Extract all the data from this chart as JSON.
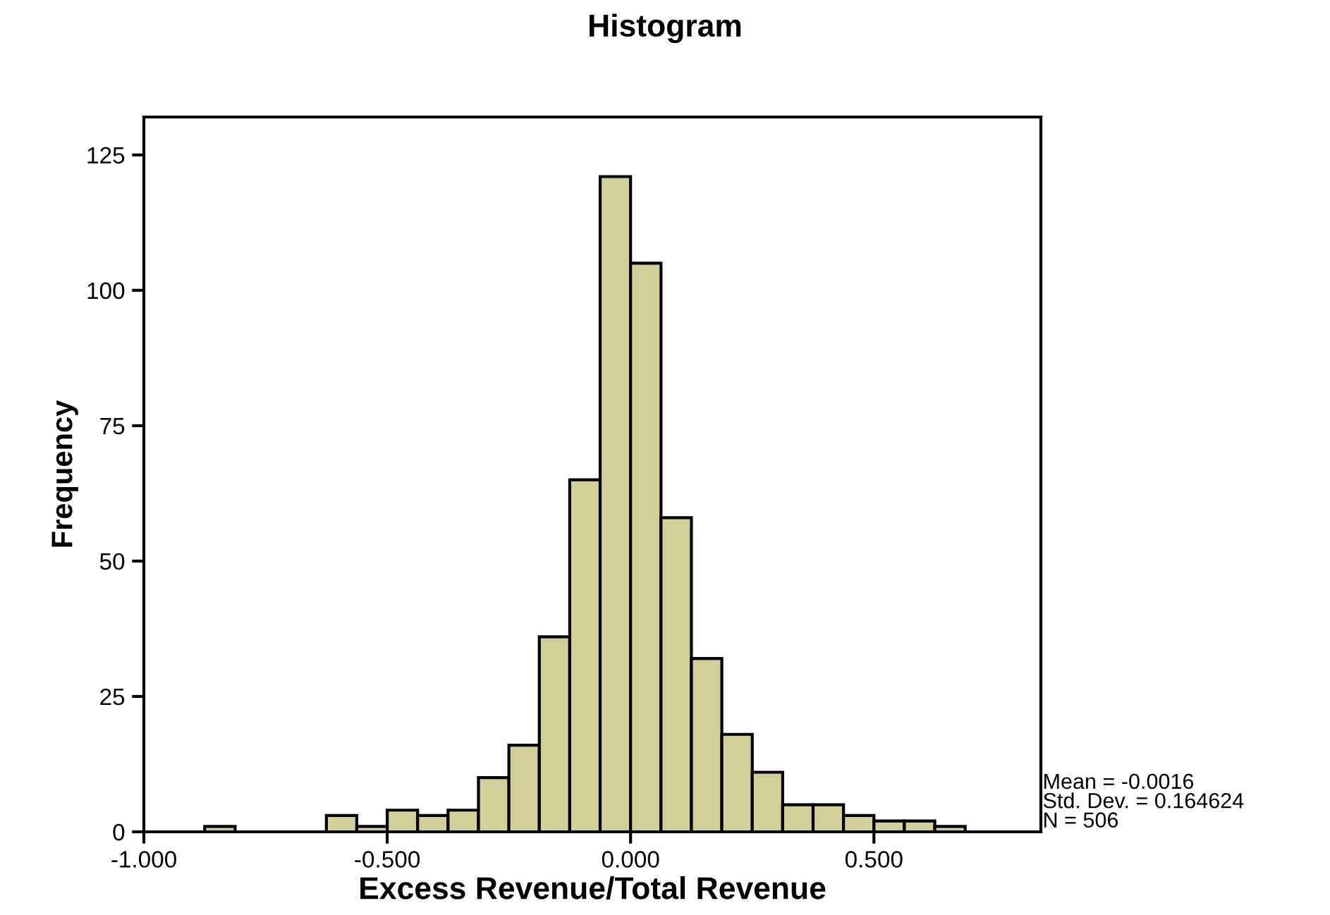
{
  "chart_data": {
    "type": "histogram",
    "title": "Histogram",
    "xlabel": "Excess Revenue/Total Revenue",
    "ylabel": "Frequency",
    "bins": [
      -0.875,
      -0.8125,
      -0.75,
      -0.6875,
      -0.625,
      -0.5625,
      -0.5,
      -0.4375,
      -0.375,
      -0.3125,
      -0.25,
      -0.1875,
      -0.125,
      -0.0625,
      0,
      0.0625,
      0.125,
      0.1875,
      0.25,
      0.3125,
      0.375,
      0.4375,
      0.5,
      0.5625,
      0.625,
      0.6875
    ],
    "values": [
      1,
      0,
      0,
      0,
      3,
      1,
      4,
      3,
      4,
      10,
      16,
      36,
      65,
      121,
      105,
      58,
      32,
      18,
      11,
      5,
      5,
      3,
      2,
      2,
      1
    ],
    "color": "#d3cf98",
    "xlim": [
      -1.0,
      0.843
    ],
    "xticks": [
      {
        "value": -1.0,
        "label": "-1.000"
      },
      {
        "value": -0.5,
        "label": "-0.500"
      },
      {
        "value": 0.0,
        "label": "0.000"
      },
      {
        "value": 0.5,
        "label": "0.500"
      }
    ],
    "ylim": [
      0,
      132
    ],
    "yticks": [
      0,
      25,
      50,
      75,
      100,
      125
    ],
    "annotations": [
      "Mean = -0.0016\nStd. Dev. = 0.164624\nN = 506"
    ],
    "grid": false
  }
}
